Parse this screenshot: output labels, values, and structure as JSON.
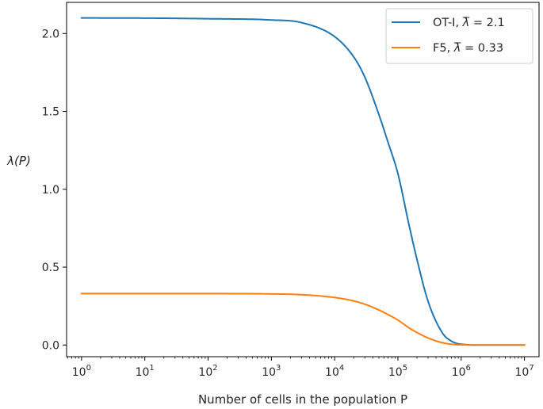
{
  "chart_data": {
    "type": "line",
    "title": "",
    "xlabel": "Number of cells in the population P",
    "ylabel": "λ(P)",
    "xscale": "log",
    "xlim": [
      0.58,
      17000000
    ],
    "ylim": [
      -0.075,
      2.2
    ],
    "x_ticks": [
      {
        "value": 1,
        "base": "10",
        "exp": "0"
      },
      {
        "value": 10,
        "base": "10",
        "exp": "1"
      },
      {
        "value": 100,
        "base": "10",
        "exp": "2"
      },
      {
        "value": 1000,
        "base": "10",
        "exp": "3"
      },
      {
        "value": 10000,
        "base": "10",
        "exp": "4"
      },
      {
        "value": 100000,
        "base": "10",
        "exp": "5"
      },
      {
        "value": 1000000,
        "base": "10",
        "exp": "6"
      },
      {
        "value": 10000000,
        "base": "10",
        "exp": "7"
      }
    ],
    "y_ticks": [
      {
        "value": 0.0,
        "label": "0.0"
      },
      {
        "value": 0.5,
        "label": "0.5"
      },
      {
        "value": 1.0,
        "label": "1.0"
      },
      {
        "value": 1.5,
        "label": "1.5"
      },
      {
        "value": 2.0,
        "label": "2.0"
      }
    ],
    "grid": false,
    "legend_position": "top-right",
    "series": [
      {
        "name": "OT-I,  λ̄ = 2.1",
        "legend": {
          "prefix": "OT-I,  ",
          "lambda": "λ",
          "eq": " = 2.1"
        },
        "color": "#1f77b4",
        "x": [
          1,
          10,
          100,
          1000,
          3000,
          10000,
          20000,
          30000,
          50000,
          70000,
          100000,
          150000,
          200000,
          300000,
          500000,
          700000,
          1000000,
          2000000,
          10000000
        ],
        "y": [
          2.1,
          2.099,
          2.095,
          2.087,
          2.07,
          1.98,
          1.85,
          1.72,
          1.48,
          1.3,
          1.1,
          0.77,
          0.55,
          0.28,
          0.08,
          0.025,
          0.005,
          0.0,
          0.0
        ]
      },
      {
        "name": "F5,  λ̄ = 0.33",
        "legend": {
          "prefix": "F5,  ",
          "lambda": "λ",
          "eq": " = 0.33"
        },
        "color": "#ff7f0e",
        "x": [
          1,
          10,
          100,
          1000,
          3000,
          10000,
          20000,
          30000,
          50000,
          70000,
          100000,
          150000,
          200000,
          300000,
          500000,
          700000,
          1000000,
          2000000,
          10000000
        ],
        "y": [
          0.33,
          0.33,
          0.33,
          0.328,
          0.323,
          0.305,
          0.283,
          0.262,
          0.225,
          0.195,
          0.16,
          0.11,
          0.08,
          0.045,
          0.015,
          0.005,
          0.001,
          0.0,
          0.0
        ]
      }
    ]
  }
}
